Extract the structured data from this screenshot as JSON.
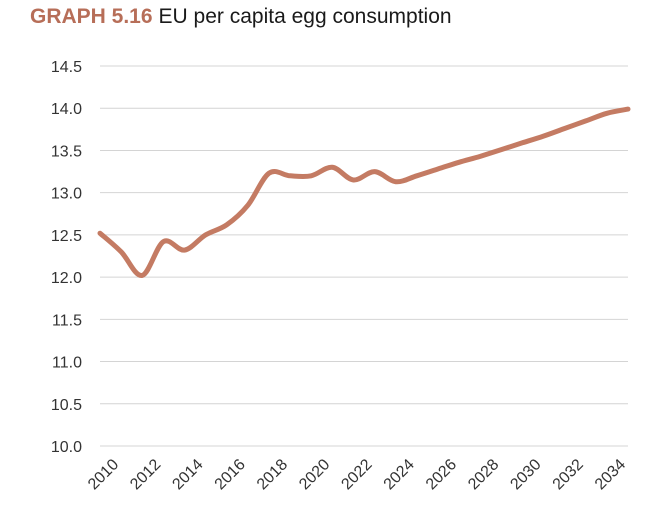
{
  "title": {
    "label": "GRAPH 5.16",
    "text": "EU per capita egg consumption"
  },
  "chart_data": {
    "type": "line",
    "title": "EU per capita egg consumption",
    "xlabel": "",
    "ylabel": "",
    "ylim": [
      10.0,
      14.5
    ],
    "xlim": [
      2010,
      2035
    ],
    "grid": true,
    "legend": "none",
    "y_ticks": [
      "10.0",
      "10.5",
      "11.0",
      "11.5",
      "12.0",
      "12.5",
      "13.0",
      "13.5",
      "14.0",
      "14.5"
    ],
    "x_ticks": [
      "2010",
      "2012",
      "2014",
      "2016",
      "2018",
      "2020",
      "2022",
      "2024",
      "2026",
      "2028",
      "2030",
      "2032",
      "2034"
    ],
    "color": "#c47b63",
    "series": [
      {
        "x": [
          2010,
          2011,
          2012,
          2013,
          2014,
          2015,
          2016,
          2017,
          2018,
          2019,
          2020,
          2021,
          2022,
          2023,
          2024,
          2025,
          2026,
          2027,
          2028,
          2029,
          2030,
          2031,
          2032,
          2033,
          2034,
          2035
        ],
        "values": [
          12.52,
          12.3,
          12.02,
          12.42,
          12.32,
          12.5,
          12.62,
          12.85,
          13.23,
          13.2,
          13.2,
          13.3,
          13.15,
          13.25,
          13.13,
          13.2,
          13.28,
          13.36,
          13.43,
          13.51,
          13.59,
          13.67,
          13.76,
          13.85,
          13.94,
          13.99
        ]
      }
    ]
  }
}
